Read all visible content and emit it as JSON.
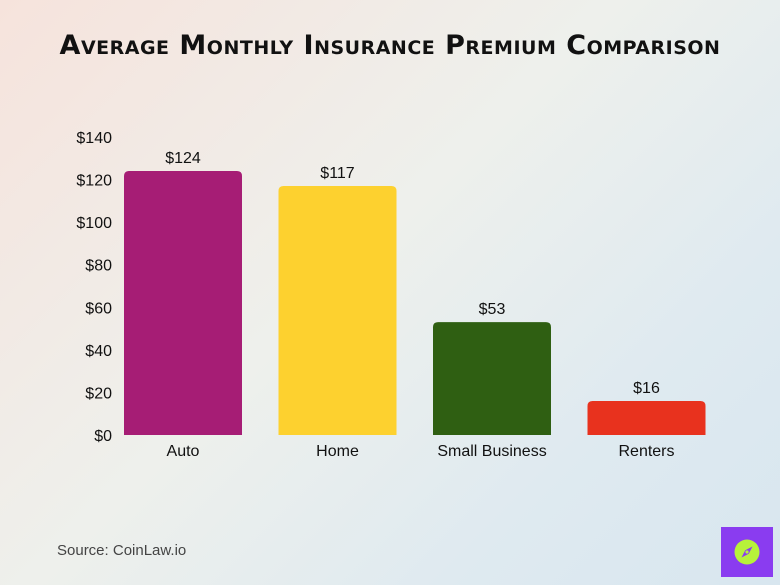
{
  "title": "Average Monthly Insurance Premium Comparison",
  "source": "Source: CoinLaw.io",
  "chart_data": {
    "type": "bar",
    "title": "Average Monthly Insurance Premium Comparison",
    "xlabel": "",
    "ylabel": "",
    "categories": [
      "Auto",
      "Home",
      "Small Business",
      "Renters"
    ],
    "values": [
      124,
      117,
      53,
      16
    ],
    "value_labels": [
      "$124",
      "$117",
      "$53",
      "$16"
    ],
    "colors": [
      "#a61d75",
      "#fdd12f",
      "#2f5f12",
      "#e8321e"
    ],
    "ylim": [
      0,
      140
    ],
    "yticks": [
      0,
      20,
      40,
      60,
      80,
      100,
      120,
      140
    ],
    "ytick_labels": [
      "$0",
      "$20",
      "$40",
      "$60",
      "$80",
      "$100",
      "$120",
      "$140"
    ],
    "grid": false,
    "legend": "none"
  },
  "logo": {
    "icon": "compass-icon",
    "color": "#8a3cf0"
  }
}
